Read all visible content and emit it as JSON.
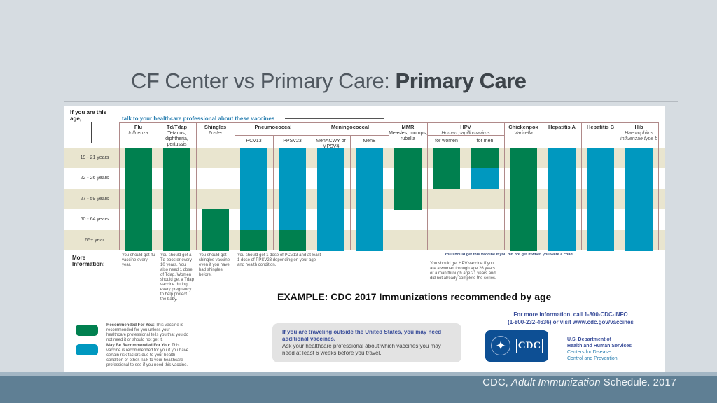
{
  "slide": {
    "title_plain": "CF Center vs Primary Care: ",
    "title_bold": "Primary Care",
    "caption": "EXAMPLE: CDC 2017 Immunizations recommended by age",
    "citation_prefix": "CDC, ",
    "citation_italic": "Adult Immunization",
    "citation_suffix": " Schedule. 2017"
  },
  "schedule": {
    "age_header": "If you are this age,",
    "talk_header": "talk to your healthcare professional about these vaccines",
    "colors": {
      "recommended": "#00804f",
      "may_be_recommended": "#0098bf",
      "row_shade": "#e9e5cf"
    },
    "ages": [
      "19 - 21 years",
      "22 - 26 years",
      "27 - 59 years",
      "60 - 64 years",
      "65+ year"
    ],
    "groups": [
      {
        "label": "Pneumococcal",
        "start": 3,
        "span": 2
      },
      {
        "label": "Meningococcal",
        "start": 5,
        "span": 2
      },
      {
        "label": "HPV",
        "sub": "Human papillomavirus",
        "start": 8,
        "span": 2
      }
    ],
    "vaccines": [
      {
        "name": "Flu",
        "desc": "Influenza",
        "bars": [
          "g",
          "g",
          "g",
          "g",
          "g"
        ]
      },
      {
        "name": "Td/Tdap",
        "desc": "Tetanus, diphtheria, pertussis",
        "bars": [
          "g",
          "g",
          "g",
          "g",
          "g"
        ]
      },
      {
        "name": "Shingles",
        "desc": "Zoster",
        "bars": [
          "",
          "",
          "",
          "g",
          "g"
        ]
      },
      {
        "name": "PCV13",
        "bars": [
          "b",
          "b",
          "b",
          "b",
          "g"
        ]
      },
      {
        "name": "PPSV23",
        "bars": [
          "b",
          "b",
          "b",
          "b",
          "g"
        ]
      },
      {
        "name": "MenACWY or MPSV4",
        "bars": [
          "b",
          "b",
          "b",
          "b",
          "b"
        ]
      },
      {
        "name": "MenB",
        "bars": [
          "b",
          "b",
          "b",
          "b",
          "b"
        ]
      },
      {
        "name": "MMR",
        "desc": "Measles, mumps, rubella",
        "bars": [
          "g",
          "g",
          "g",
          "",
          ""
        ]
      },
      {
        "name": "for women",
        "bars": [
          "g",
          "g",
          "",
          "",
          ""
        ]
      },
      {
        "name": "for men",
        "bars": [
          "g",
          "b",
          "",
          "",
          ""
        ]
      },
      {
        "name": "Chickenpox",
        "desc": "Varicella",
        "bars": [
          "g",
          "g",
          "g",
          "g",
          "g"
        ]
      },
      {
        "name": "Hepatitis A",
        "bars": [
          "b",
          "b",
          "b",
          "b",
          "b"
        ]
      },
      {
        "name": "Hepatitis B",
        "bars": [
          "b",
          "b",
          "b",
          "b",
          "b"
        ]
      },
      {
        "name": "Hib",
        "desc": "Haemophilus influenzae type b",
        "bars": [
          "b",
          "b",
          "b",
          "b",
          "b"
        ]
      }
    ],
    "more_info_label": "More Information:",
    "more_info": [
      "You should get flu vaccine every year.",
      "You should get a Td booster every 10 years. You also need 1 dose of Tdap. Women should get a Tdap vaccine during every pregnancy to help protect the baby.",
      "You should get shingles vaccine even if you have had shingles before.",
      "You should get 1 dose of PCV13 and at least 1 dose of PPSV23 depending on your age and health condition."
    ],
    "childhood_note": "You should get this vaccine if you did not get it when you were a child.",
    "hpv_note": "You should get HPV vaccine if you are a woman through age 26 years or a man through age 21 years and did not already complete the series.",
    "legend": [
      {
        "title": "Recommended For You:",
        "text": "This vaccine is recommended for you unless your healthcare professional tells you that you do not need it or should not get it."
      },
      {
        "title": "May Be Recommended For You:",
        "text": "This vaccine is recommended for you if you have certain risk factors due to your health condition or other. Talk to your healthcare professional to see if you need this vaccine."
      }
    ],
    "travel_bold": "If you are traveling outside the United States, you may need additional vaccines.",
    "travel_text": "Ask your healthcare professional about which vaccines you may need at least 6 weeks before you travel.",
    "contact_line1": "For more information, call 1-800-CDC-INFO",
    "contact_line2": "(1-800-232-4636) or visit www.cdc.gov/vaccines",
    "cdc_logo_text": "CDC",
    "hhs_line1": "U.S. Department of",
    "hhs_line2": "Health and Human Services",
    "cdc_line1": "Centers for Disease",
    "cdc_line2": "Control and Prevention"
  }
}
